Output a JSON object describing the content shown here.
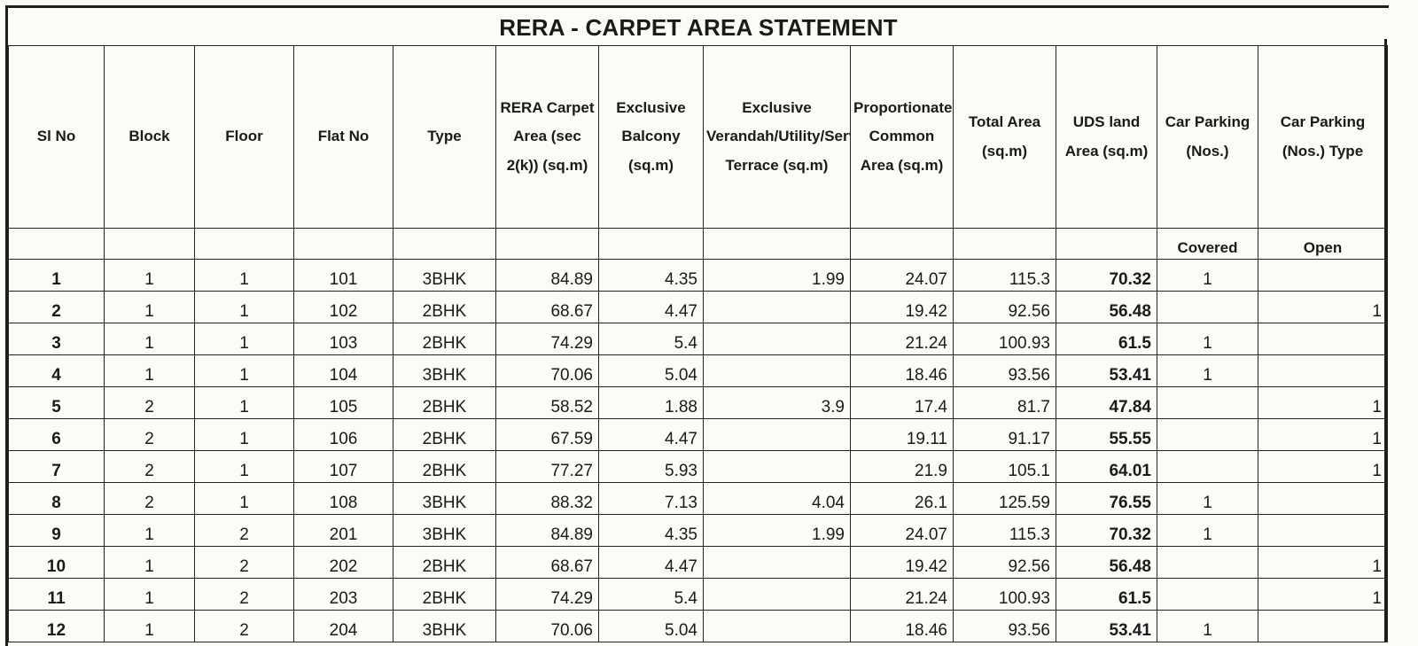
{
  "title": "RERA - CARPET AREA STATEMENT",
  "columns": [
    "Sl No",
    "Block",
    "Floor",
    "Flat No",
    "Type",
    "RERA Carpet Area (sec 2(k)) (sq.m)",
    "Exclusive Balcony (sq.m)",
    "Exclusive Verandah/Utility/Service/Open Terrace (sq.m)",
    "Proportionate Common Area (sq.m)",
    "Total Area (sq.m)",
    "UDS land Area (sq.m)",
    "Car Parking (Nos.)",
    "Car Parking (Nos.) Type"
  ],
  "parking_subheaders": {
    "covered": "Covered",
    "open": "Open"
  },
  "rows": [
    {
      "sl": "1",
      "block": "1",
      "floor": "1",
      "flat": "101",
      "type": "3BHK",
      "carpet": "84.89",
      "balcony": "4.35",
      "verandah": "1.99",
      "common": "24.07",
      "total": "115.3",
      "uds": "70.32",
      "covered": "1",
      "open": ""
    },
    {
      "sl": "2",
      "block": "1",
      "floor": "1",
      "flat": "102",
      "type": "2BHK",
      "carpet": "68.67",
      "balcony": "4.47",
      "verandah": "",
      "common": "19.42",
      "total": "92.56",
      "uds": "56.48",
      "covered": "",
      "open": "1"
    },
    {
      "sl": "3",
      "block": "1",
      "floor": "1",
      "flat": "103",
      "type": "2BHK",
      "carpet": "74.29",
      "balcony": "5.4",
      "verandah": "",
      "common": "21.24",
      "total": "100.93",
      "uds": "61.5",
      "covered": "1",
      "open": ""
    },
    {
      "sl": "4",
      "block": "1",
      "floor": "1",
      "flat": "104",
      "type": "3BHK",
      "carpet": "70.06",
      "balcony": "5.04",
      "verandah": "",
      "common": "18.46",
      "total": "93.56",
      "uds": "53.41",
      "covered": "1",
      "open": ""
    },
    {
      "sl": "5",
      "block": "2",
      "floor": "1",
      "flat": "105",
      "type": "2BHK",
      "carpet": "58.52",
      "balcony": "1.88",
      "verandah": "3.9",
      "common": "17.4",
      "total": "81.7",
      "uds": "47.84",
      "covered": "",
      "open": "1"
    },
    {
      "sl": "6",
      "block": "2",
      "floor": "1",
      "flat": "106",
      "type": "2BHK",
      "carpet": "67.59",
      "balcony": "4.47",
      "verandah": "",
      "common": "19.11",
      "total": "91.17",
      "uds": "55.55",
      "covered": "",
      "open": "1"
    },
    {
      "sl": "7",
      "block": "2",
      "floor": "1",
      "flat": "107",
      "type": "2BHK",
      "carpet": "77.27",
      "balcony": "5.93",
      "verandah": "",
      "common": "21.9",
      "total": "105.1",
      "uds": "64.01",
      "covered": "",
      "open": "1"
    },
    {
      "sl": "8",
      "block": "2",
      "floor": "1",
      "flat": "108",
      "type": "3BHK",
      "carpet": "88.32",
      "balcony": "7.13",
      "verandah": "4.04",
      "common": "26.1",
      "total": "125.59",
      "uds": "76.55",
      "covered": "1",
      "open": ""
    },
    {
      "sl": "9",
      "block": "1",
      "floor": "2",
      "flat": "201",
      "type": "3BHK",
      "carpet": "84.89",
      "balcony": "4.35",
      "verandah": "1.99",
      "common": "24.07",
      "total": "115.3",
      "uds": "70.32",
      "covered": "1",
      "open": ""
    },
    {
      "sl": "10",
      "block": "1",
      "floor": "2",
      "flat": "202",
      "type": "2BHK",
      "carpet": "68.67",
      "balcony": "4.47",
      "verandah": "",
      "common": "19.42",
      "total": "92.56",
      "uds": "56.48",
      "covered": "",
      "open": "1"
    },
    {
      "sl": "11",
      "block": "1",
      "floor": "2",
      "flat": "203",
      "type": "2BHK",
      "carpet": "74.29",
      "balcony": "5.4",
      "verandah": "",
      "common": "21.24",
      "total": "100.93",
      "uds": "61.5",
      "covered": "",
      "open": "1"
    },
    {
      "sl": "12",
      "block": "1",
      "floor": "2",
      "flat": "204",
      "type": "3BHK",
      "carpet": "70.06",
      "balcony": "5.04",
      "verandah": "",
      "common": "18.46",
      "total": "93.56",
      "uds": "53.41",
      "covered": "1",
      "open": ""
    }
  ]
}
